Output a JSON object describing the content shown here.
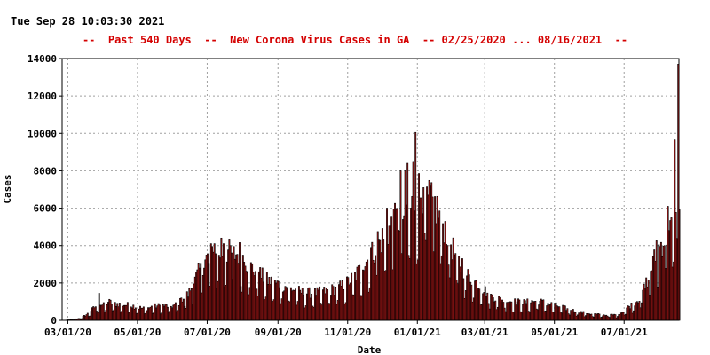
{
  "header": {
    "timestamp": "Tue Sep 28 10:03:30 2021",
    "title": "--  Past 540 Days  --  New Corona Virus Cases in GA  -- 02/25/2020 ... 08/16/2021  --"
  },
  "colors": {
    "bar_fill": "#b01818",
    "bar_outline": "#000000",
    "title_color": "#d40000",
    "grid_color": "#a0a0a0"
  },
  "chart_data": {
    "type": "bar",
    "title": "--  Past 540 Days  --  New Corona Virus Cases in GA  -- 02/25/2020 ... 08/16/2021  --",
    "xlabel": "Date",
    "ylabel": "Cases",
    "ylim": [
      0,
      14000
    ],
    "yticks": [
      0,
      2000,
      4000,
      6000,
      8000,
      10000,
      12000,
      14000
    ],
    "xticks": [
      {
        "label": "03/01/20",
        "day": 5
      },
      {
        "label": "05/01/20",
        "day": 66
      },
      {
        "label": "07/01/20",
        "day": 127
      },
      {
        "label": "09/01/20",
        "day": 189
      },
      {
        "label": "11/01/20",
        "day": 250
      },
      {
        "label": "01/01/21",
        "day": 311
      },
      {
        "label": "03/01/21",
        "day": 370
      },
      {
        "label": "05/01/21",
        "day": 431
      },
      {
        "label": "07/01/21",
        "day": 492
      }
    ],
    "grid": true,
    "day_range": [
      0,
      540
    ],
    "start_date": "02/25/2020",
    "end_date": "08/16/2021",
    "anchors": [
      [
        0,
        0
      ],
      [
        10,
        50
      ],
      [
        16,
        120
      ],
      [
        22,
        350
      ],
      [
        28,
        700
      ],
      [
        32,
        900
      ],
      [
        36,
        800
      ],
      [
        40,
        1000
      ],
      [
        45,
        900
      ],
      [
        52,
        850
      ],
      [
        60,
        800
      ],
      [
        66,
        700
      ],
      [
        72,
        620
      ],
      [
        80,
        750
      ],
      [
        88,
        800
      ],
      [
        95,
        750
      ],
      [
        100,
        850
      ],
      [
        105,
        1100
      ],
      [
        110,
        1400
      ],
      [
        115,
        2000
      ],
      [
        120,
        2700
      ],
      [
        126,
        3300
      ],
      [
        132,
        3400
      ],
      [
        138,
        3600
      ],
      [
        145,
        3700
      ],
      [
        150,
        3500
      ],
      [
        155,
        3600
      ],
      [
        162,
        3000
      ],
      [
        170,
        2600
      ],
      [
        178,
        2200
      ],
      [
        185,
        2000
      ],
      [
        192,
        1900
      ],
      [
        200,
        1700
      ],
      [
        210,
        1500
      ],
      [
        220,
        1450
      ],
      [
        230,
        1550
      ],
      [
        240,
        1700
      ],
      [
        247,
        1900
      ],
      [
        255,
        2300
      ],
      [
        262,
        2800
      ],
      [
        270,
        3500
      ],
      [
        278,
        4200
      ],
      [
        285,
        4800
      ],
      [
        292,
        5300
      ],
      [
        298,
        5600
      ],
      [
        305,
        6000
      ],
      [
        311,
        6800
      ],
      [
        316,
        7200
      ],
      [
        320,
        6800
      ],
      [
        326,
        6200
      ],
      [
        332,
        5400
      ],
      [
        338,
        4500
      ],
      [
        344,
        3400
      ],
      [
        350,
        2800
      ],
      [
        356,
        2300
      ],
      [
        362,
        2000
      ],
      [
        368,
        1700
      ],
      [
        375,
        1300
      ],
      [
        385,
        1100
      ],
      [
        395,
        1000
      ],
      [
        405,
        950
      ],
      [
        415,
        1050
      ],
      [
        425,
        900
      ],
      [
        435,
        750
      ],
      [
        445,
        550
      ],
      [
        455,
        420
      ],
      [
        465,
        330
      ],
      [
        475,
        280
      ],
      [
        485,
        300
      ],
      [
        490,
        450
      ],
      [
        495,
        700
      ],
      [
        500,
        900
      ],
      [
        505,
        1200
      ],
      [
        510,
        1800
      ],
      [
        515,
        2700
      ],
      [
        520,
        3600
      ],
      [
        525,
        4200
      ],
      [
        530,
        4600
      ],
      [
        535,
        5000
      ],
      [
        538,
        5200
      ],
      [
        540,
        5300
      ]
    ],
    "spikes": [
      [
        32,
        1450
      ],
      [
        104,
        1200
      ],
      [
        115,
        1950
      ],
      [
        121,
        3050
      ],
      [
        128,
        3050
      ],
      [
        130,
        4100
      ],
      [
        133,
        4100
      ],
      [
        139,
        4400
      ],
      [
        141,
        4100
      ],
      [
        147,
        4000
      ],
      [
        150,
        3950
      ],
      [
        160,
        2900
      ],
      [
        172,
        2600
      ],
      [
        263,
        2700
      ],
      [
        270,
        3900
      ],
      [
        276,
        4750
      ],
      [
        284,
        6000
      ],
      [
        290,
        5950
      ],
      [
        296,
        8000
      ],
      [
        300,
        8000
      ],
      [
        302,
        8400
      ],
      [
        307,
        8500
      ],
      [
        309,
        10050
      ],
      [
        313,
        6550
      ],
      [
        316,
        7100
      ],
      [
        320,
        6700
      ],
      [
        324,
        6600
      ],
      [
        330,
        5850
      ],
      [
        350,
        3300
      ],
      [
        513,
        2150
      ],
      [
        520,
        4300
      ],
      [
        527,
        4000
      ],
      [
        530,
        6100
      ],
      [
        536,
        9650
      ],
      [
        539,
        13700
      ]
    ]
  }
}
